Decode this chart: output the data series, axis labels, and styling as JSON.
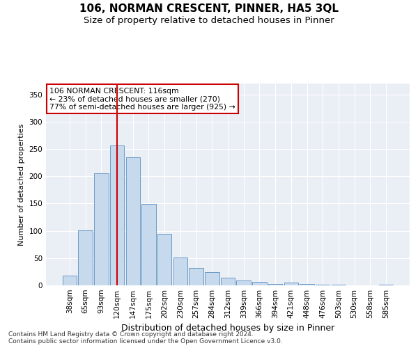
{
  "title": "106, NORMAN CRESCENT, PINNER, HA5 3QL",
  "subtitle": "Size of property relative to detached houses in Pinner",
  "xlabel": "Distribution of detached houses by size in Pinner",
  "ylabel": "Number of detached properties",
  "bar_labels": [
    "38sqm",
    "65sqm",
    "93sqm",
    "120sqm",
    "147sqm",
    "175sqm",
    "202sqm",
    "230sqm",
    "257sqm",
    "284sqm",
    "312sqm",
    "339sqm",
    "366sqm",
    "394sqm",
    "421sqm",
    "448sqm",
    "476sqm",
    "503sqm",
    "530sqm",
    "558sqm",
    "585sqm"
  ],
  "bar_values": [
    18,
    101,
    205,
    257,
    235,
    149,
    95,
    51,
    32,
    24,
    14,
    9,
    6,
    3,
    5,
    2,
    1,
    1,
    0,
    0,
    1
  ],
  "bar_color": "#c7d9ed",
  "bar_edge_color": "#5a8fc0",
  "vline_x": 3.0,
  "vline_color": "#cc0000",
  "annotation_text": "106 NORMAN CRESCENT: 116sqm\n← 23% of detached houses are smaller (270)\n77% of semi-detached houses are larger (925) →",
  "annotation_box_color": "#ffffff",
  "annotation_box_edge": "#cc0000",
  "ylim": [
    0,
    370
  ],
  "yticks": [
    0,
    50,
    100,
    150,
    200,
    250,
    300,
    350
  ],
  "bg_color": "#eaeef5",
  "footer_line1": "Contains HM Land Registry data © Crown copyright and database right 2024.",
  "footer_line2": "Contains public sector information licensed under the Open Government Licence v3.0.",
  "title_fontsize": 11,
  "subtitle_fontsize": 9.5,
  "xlabel_fontsize": 9,
  "ylabel_fontsize": 8,
  "tick_fontsize": 7.5,
  "footer_fontsize": 6.5
}
